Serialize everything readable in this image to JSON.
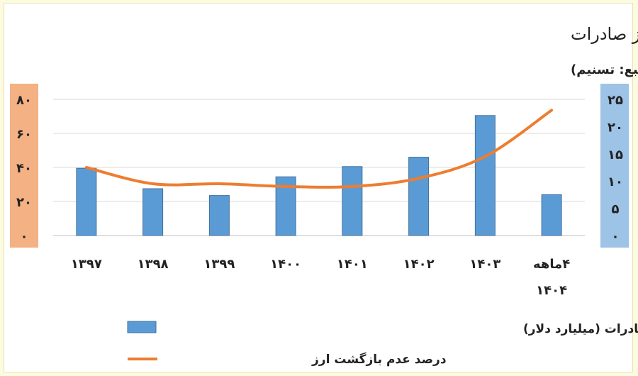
{
  "chart_data": {
    "type": "bar",
    "title": "حجم و درصد ارزهای بازگشته حاصل از صادرات",
    "subtitle": "(منبع: تسنیم)",
    "categories": [
      "۱۳۹۷",
      "۱۳۹۸",
      "۱۳۹۹",
      "۱۴۰۰",
      "۱۴۰۱",
      "۱۴۰۲",
      "۱۴۰۳",
      "۴ماهه ۱۴۰۴"
    ],
    "category_lines": [
      [
        "۱۳۹۷"
      ],
      [
        "۱۳۹۸"
      ],
      [
        "۱۳۹۹"
      ],
      [
        "۱۴۰۰"
      ],
      [
        "۱۴۰۱"
      ],
      [
        "۱۴۰۲"
      ],
      [
        "۱۴۰۳"
      ],
      [
        "۴ماهه",
        "۱۴۰۴"
      ]
    ],
    "series": [
      {
        "name": "حجم ارزهای بازگشته حاصل از صادرات (میلیارد دلار)",
        "kind": "bar",
        "axis": "left",
        "color": "#5b9bd5",
        "values": [
          39.5,
          27.5,
          23.5,
          34.5,
          40.5,
          46,
          70.5,
          24
        ]
      },
      {
        "name": "درصد عدم بازگشت ارز",
        "kind": "line",
        "axis": "right",
        "color": "#ed7d31",
        "values": [
          12.5,
          9.5,
          9.5,
          9,
          9,
          10.5,
          14.5,
          23
        ]
      }
    ],
    "left_axis": {
      "ylim": [
        0,
        80
      ],
      "ticks": [
        "۰",
        "۲۰",
        "۴۰",
        "۶۰",
        "۸۰"
      ],
      "values": [
        0,
        20,
        40,
        60,
        80
      ],
      "band_color": "#f4b183"
    },
    "right_axis": {
      "ylim": [
        0,
        25
      ],
      "ticks": [
        "۰",
        "۵",
        "۱۰",
        "۱۵",
        "۲۰",
        "۲۵"
      ],
      "values": [
        0,
        5,
        10,
        15,
        20,
        25
      ],
      "band_color": "#9dc3e6"
    },
    "grid": true,
    "legend_position": "bottom"
  }
}
